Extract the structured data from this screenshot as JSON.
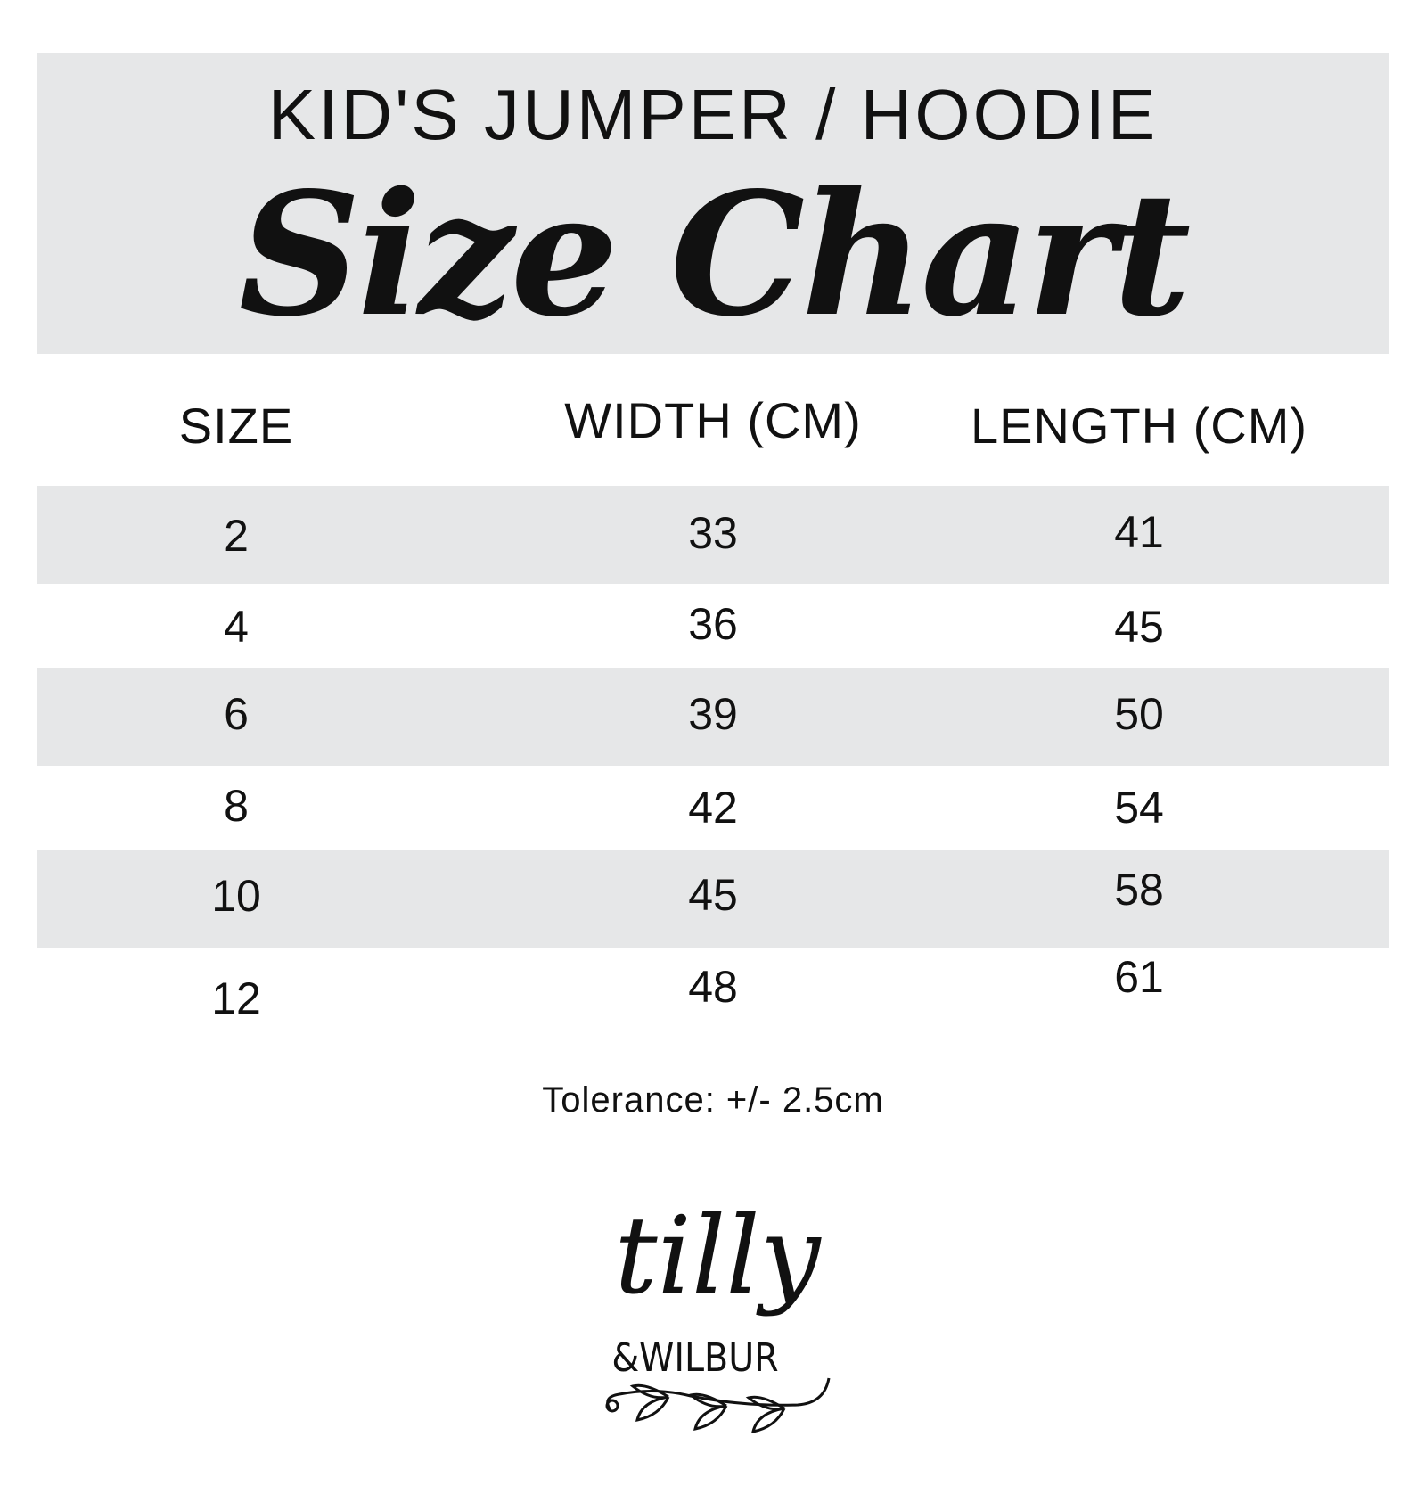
{
  "header": {
    "subtitle": "KID'S JUMPER / HOODIE",
    "title": "Size Chart"
  },
  "table": {
    "columns": [
      "SIZE",
      "WIDTH (CM)",
      "LENGTH (CM)"
    ],
    "rows": [
      [
        "2",
        "33",
        "41"
      ],
      [
        "4",
        "36",
        "45"
      ],
      [
        "6",
        "39",
        "50"
      ],
      [
        "8",
        "42",
        "54"
      ],
      [
        "10",
        "45",
        "58"
      ],
      [
        "12",
        "48",
        "61"
      ]
    ]
  },
  "footer": {
    "tolerance": "Tolerance: +/- 2.5cm"
  },
  "logo": {
    "line1": "tilly",
    "line2": "&WILBUR",
    "icon": "leaf-branch-icon"
  },
  "colors": {
    "band": "#e6e7e8",
    "text": "#111111"
  }
}
